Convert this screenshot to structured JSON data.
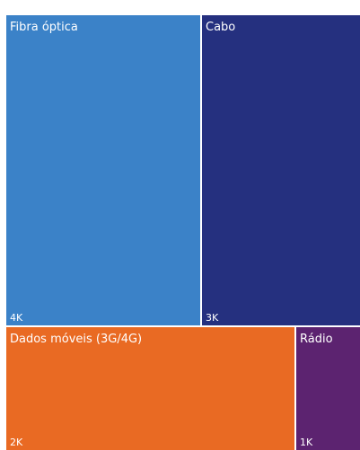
{
  "chart_data": {
    "type": "treemap",
    "title": "",
    "items": [
      {
        "name": "Fibra óptica",
        "value_label": "4K",
        "color": "#3B82C8"
      },
      {
        "name": "Cabo",
        "value_label": "3K",
        "color": "#25307F"
      },
      {
        "name": "Dados móveis (3G/4G)",
        "value_label": "2K",
        "color": "#E96A23"
      },
      {
        "name": "Rádio",
        "value_label": "1K",
        "color": "#5C2370"
      }
    ]
  }
}
